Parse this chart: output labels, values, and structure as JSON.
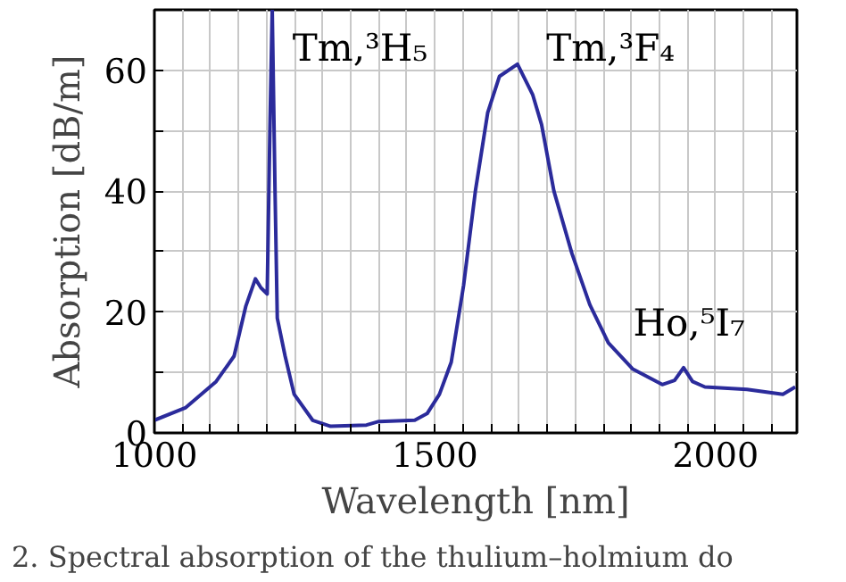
{
  "chart_data": {
    "type": "line",
    "xlabel": "Wavelength [nm]",
    "ylabel": "Absorption [dB/m]",
    "xlim": [
      1000,
      2145
    ],
    "ylim": [
      0,
      70
    ],
    "xticks": [
      1000,
      {
        "value": 1050,
        "label": null
      },
      {
        "value": 1100,
        "label": null
      },
      {
        "value": 1150,
        "label": null
      },
      {
        "value": 1200,
        "label": null
      },
      {
        "value": 1250,
        "label": null
      },
      {
        "value": 1300,
        "label": null
      },
      {
        "value": 1350,
        "label": null
      },
      {
        "value": 1400,
        "label": null
      },
      {
        "value": 1450,
        "label": null
      },
      1500,
      {
        "value": 1550,
        "label": null
      },
      {
        "value": 1600,
        "label": null
      },
      {
        "value": 1650,
        "label": null
      },
      {
        "value": 1700,
        "label": null
      },
      {
        "value": 1750,
        "label": null
      },
      {
        "value": 1800,
        "label": null
      },
      {
        "value": 1850,
        "label": null
      },
      {
        "value": 1900,
        "label": null
      },
      {
        "value": 1950,
        "label": null
      },
      2000,
      {
        "value": 2050,
        "label": null
      },
      {
        "value": 2100,
        "label": null
      }
    ],
    "yticks": [
      0,
      {
        "value": 10,
        "label": null
      },
      20,
      {
        "value": 30,
        "label": null
      },
      40,
      {
        "value": 50,
        "label": null
      },
      60
    ],
    "grid": true,
    "marker": "none",
    "line_style": "solid",
    "series": [
      {
        "color": "#2b2b9b",
        "x": [
          1000,
          1056,
          1110,
          1142,
          1163,
          1180,
          1190,
          1201,
          1206,
          1210,
          1215,
          1219,
          1233,
          1249,
          1282,
          1314,
          1378,
          1400,
          1464,
          1486,
          1508,
          1529,
          1551,
          1572,
          1594,
          1615,
          1647,
          1674,
          1690,
          1712,
          1744,
          1776,
          1809,
          1852,
          1905,
          1927,
          1943,
          1959,
          1981,
          2056,
          2120,
          2142
        ],
        "values": [
          2.1,
          4.2,
          8.5,
          12.7,
          21,
          25.5,
          24,
          23,
          51,
          70,
          40,
          19,
          12.7,
          6.4,
          2.1,
          1.1,
          1.3,
          1.9,
          2.1,
          3.2,
          6.4,
          11.7,
          24.4,
          40,
          53,
          59,
          61,
          56,
          51,
          40,
          29.7,
          21.2,
          14.9,
          10.6,
          8,
          8.7,
          10.8,
          8.5,
          7.6,
          7.2,
          6.4,
          7.6
        ]
      }
    ],
    "annotations": [
      "Tm,³H₅",
      "Tm,³F₄",
      "Ho,⁵I₇",
      "2.  Spectral absorption of the thulium–holmium do"
    ]
  }
}
